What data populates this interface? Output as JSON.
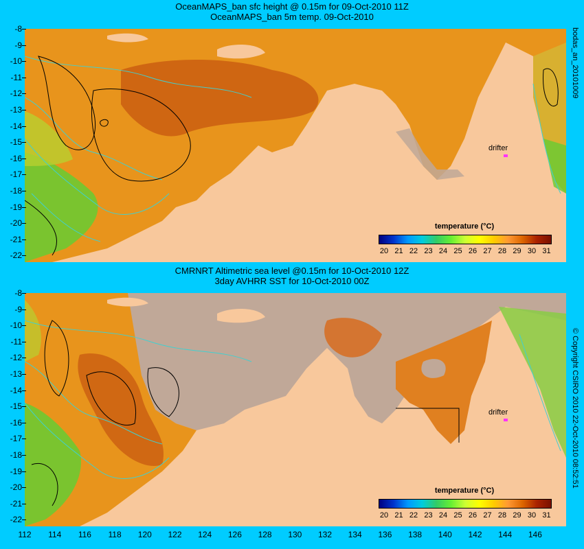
{
  "top": {
    "title1": "OceanMAPS_ban sfc height @ 0.15m for 09-Oct-2010 11Z",
    "title2": "OceanMAPS_ban 5m temp. 09-Oct-2010",
    "side_label": "bodas_an_20101009",
    "drifter": "drifter",
    "legend_title": "temperature (°C)"
  },
  "bottom": {
    "title1": "CMRNRT Altimetric sea level  @0.15m  for 10-Oct-2010 12Z",
    "title2": "3day AVHRR SST for 10-Oct-2010 00Z",
    "side_label": "© Copyright CSIRO 2010    22-Oct-2010 08:52:51",
    "drifter": "drifter",
    "legend_title": "temperature (°C)"
  },
  "y_ticks": [
    "-8",
    "-9",
    "-10",
    "-11",
    "-12",
    "-13",
    "-14",
    "-15",
    "-16",
    "-17",
    "-18",
    "-19",
    "-20",
    "-21",
    "-22"
  ],
  "x_ticks": [
    "112",
    "114",
    "116",
    "118",
    "120",
    "122",
    "124",
    "126",
    "128",
    "130",
    "132",
    "134",
    "136",
    "138",
    "140",
    "142",
    "144",
    "146"
  ],
  "colorbar_labels": [
    "20",
    "21",
    "22",
    "23",
    "24",
    "25",
    "26",
    "27",
    "28",
    "29",
    "30",
    "31"
  ],
  "colors": {
    "background": "#00ccff",
    "land": "#f8c89c",
    "no_data": "#c0a898",
    "contour_cyan": "#40d0d0",
    "drifter": "#ff33ff"
  }
}
